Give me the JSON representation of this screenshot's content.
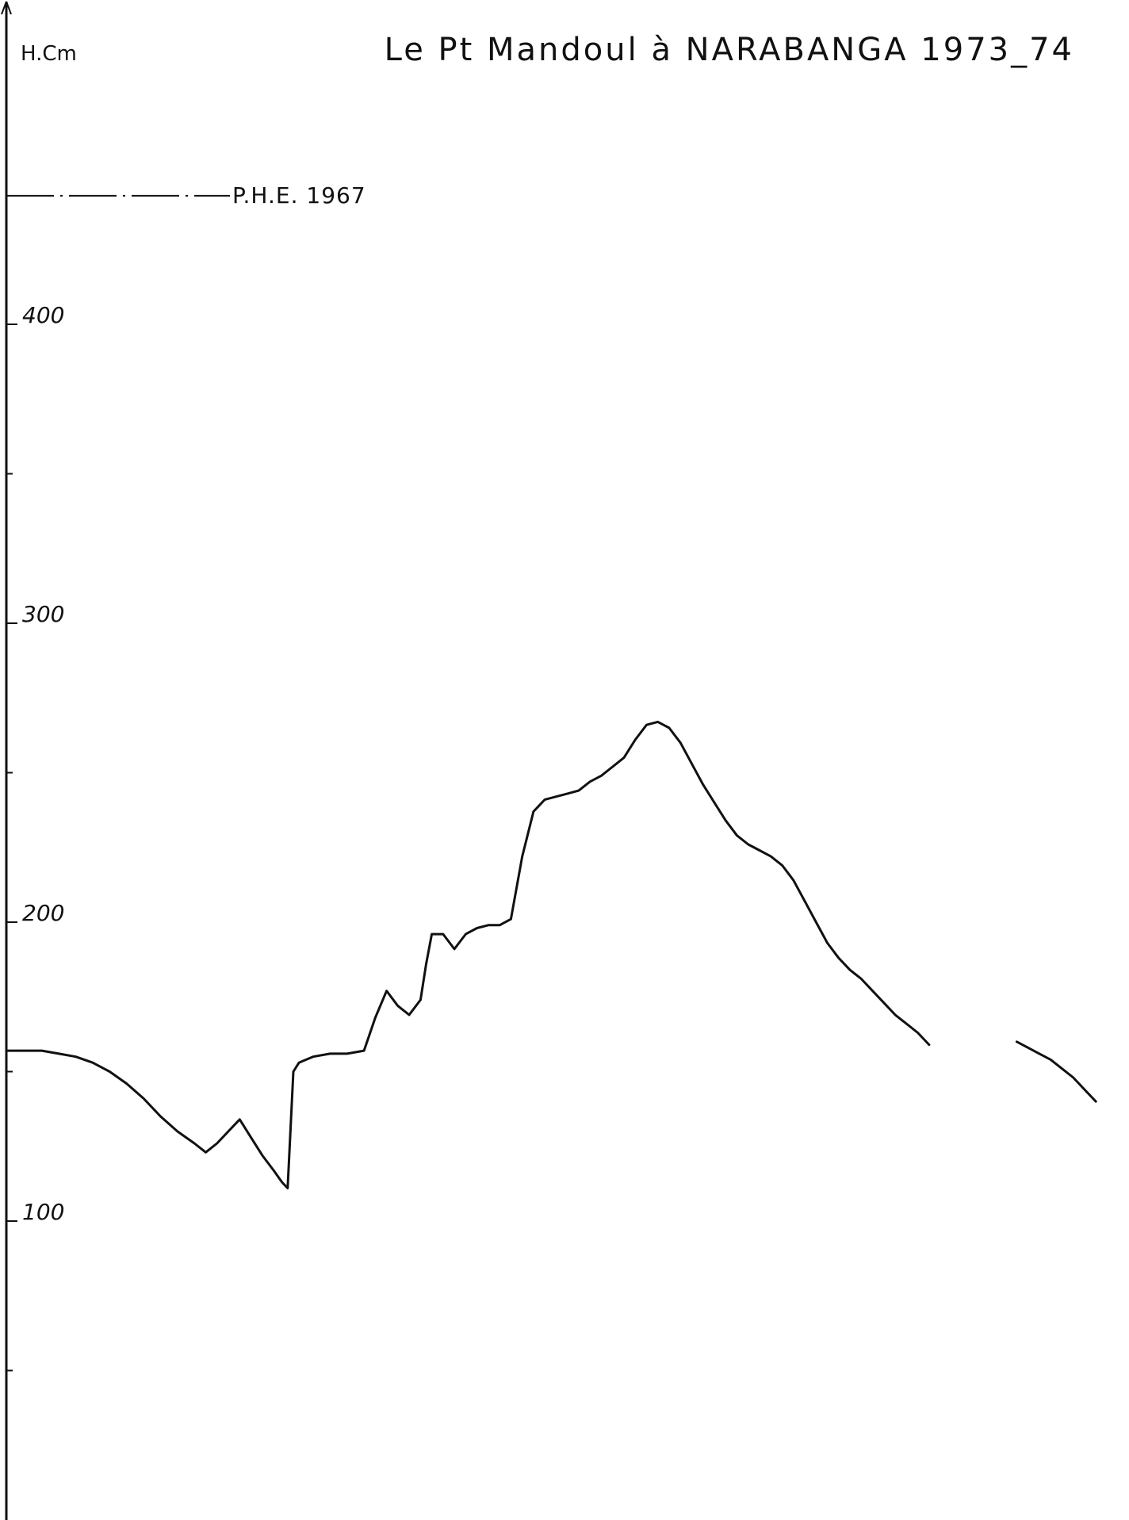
{
  "chart_data": {
    "type": "line",
    "title": "Le Pt Mandoul à NARABANGA 1973_74",
    "ylabel": "H.Cm",
    "xlabel": "",
    "ylim": [
      0,
      470
    ],
    "yticks_labeled": [
      100,
      200,
      300,
      400
    ],
    "yticks_minor": [
      50,
      150,
      250,
      350
    ],
    "reference_line": {
      "label": "P.H.E. 1967",
      "value": 443
    },
    "grid": false,
    "legend": "none",
    "line_color": "#111111",
    "series": [
      {
        "segments": [
          [
            [
              0,
              157
            ],
            [
              6,
              157
            ],
            [
              12,
              157
            ],
            [
              18,
              156
            ],
            [
              24,
              155
            ],
            [
              30,
              153
            ],
            [
              36,
              150
            ],
            [
              42,
              146
            ],
            [
              48,
              141
            ],
            [
              54,
              135
            ],
            [
              60,
              130
            ],
            [
              66,
              126
            ],
            [
              70,
              123
            ],
            [
              74,
              126
            ],
            [
              78,
              130
            ],
            [
              82,
              134
            ],
            [
              86,
              128
            ],
            [
              90,
              122
            ],
            [
              94,
              117
            ],
            [
              97,
              113
            ],
            [
              99,
              111
            ],
            [
              101,
              150
            ],
            [
              103,
              153
            ],
            [
              108,
              155
            ],
            [
              114,
              156
            ],
            [
              120,
              156
            ],
            [
              126,
              157
            ],
            [
              130,
              168
            ],
            [
              134,
              177
            ],
            [
              138,
              172
            ],
            [
              142,
              169
            ],
            [
              146,
              174
            ],
            [
              148,
              186
            ],
            [
              150,
              196
            ],
            [
              154,
              196
            ],
            [
              158,
              191
            ],
            [
              162,
              196
            ],
            [
              166,
              198
            ],
            [
              170,
              199
            ],
            [
              174,
              199
            ],
            [
              178,
              201
            ],
            [
              182,
              222
            ],
            [
              186,
              237
            ],
            [
              190,
              241
            ],
            [
              194,
              242
            ],
            [
              198,
              243
            ],
            [
              202,
              244
            ],
            [
              206,
              247
            ],
            [
              210,
              249
            ],
            [
              214,
              252
            ],
            [
              218,
              255
            ],
            [
              222,
              261
            ],
            [
              226,
              266
            ],
            [
              230,
              267
            ],
            [
              234,
              265
            ],
            [
              238,
              260
            ],
            [
              242,
              253
            ],
            [
              246,
              246
            ],
            [
              250,
              240
            ],
            [
              254,
              234
            ],
            [
              258,
              229
            ],
            [
              262,
              226
            ],
            [
              266,
              224
            ],
            [
              270,
              222
            ],
            [
              274,
              219
            ],
            [
              278,
              214
            ],
            [
              282,
              207
            ],
            [
              286,
              200
            ],
            [
              290,
              193
            ],
            [
              294,
              188
            ],
            [
              298,
              184
            ],
            [
              302,
              181
            ],
            [
              306,
              177
            ],
            [
              310,
              173
            ],
            [
              314,
              169
            ],
            [
              318,
              166
            ],
            [
              322,
              163
            ],
            [
              326,
              159
            ]
          ],
          [
            [
              357,
              160
            ],
            [
              361,
              158
            ],
            [
              365,
              156
            ],
            [
              369,
              154
            ],
            [
              373,
              151
            ],
            [
              377,
              148
            ],
            [
              381,
              144
            ],
            [
              385,
              140
            ]
          ]
        ]
      }
    ],
    "x_plot_range": [
      0,
      390
    ]
  }
}
